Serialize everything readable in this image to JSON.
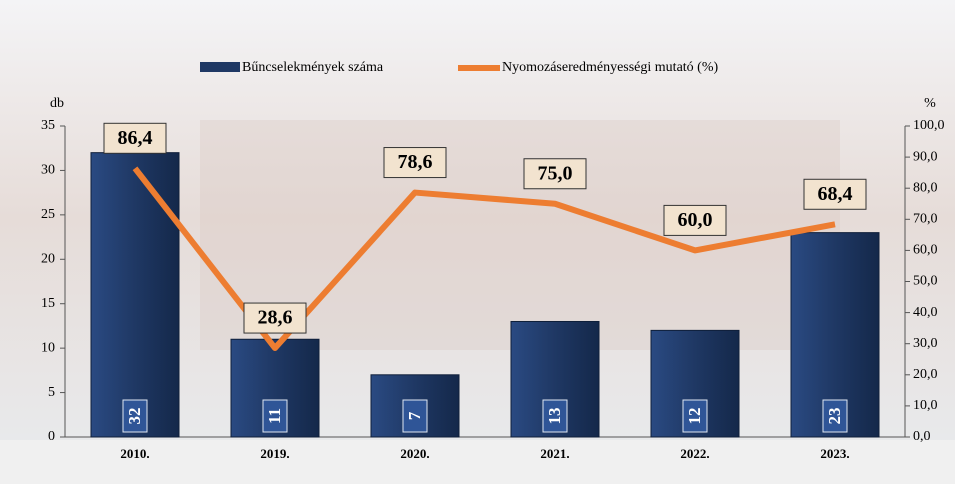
{
  "chart_data": {
    "type": "combo",
    "y_label": "db",
    "y2_label": "%",
    "categories": [
      "2010.",
      "2019.",
      "2020.",
      "2021.",
      "2022.",
      "2023."
    ],
    "series": [
      {
        "name": "Bűncselekmények száma",
        "type": "bar",
        "color": "#1f3864",
        "values": [
          32,
          11,
          7,
          13,
          12,
          23
        ]
      },
      {
        "name": "Nyomozáseredményességi mutató (%)",
        "type": "line",
        "axis": "y2",
        "color": "#ed7d31",
        "values": [
          86.4,
          28.6,
          78.6,
          75.0,
          60.0,
          68.4
        ],
        "value_labels": [
          "86,4",
          "28,6",
          "78,6",
          "75,0",
          "60,0",
          "68,4"
        ]
      }
    ],
    "ylim": [
      0,
      35
    ],
    "yticks": [
      0,
      5,
      10,
      15,
      20,
      25,
      30,
      35
    ],
    "y2lim": [
      0,
      100
    ],
    "y2ticks": [
      {
        "value": 0,
        "label": "0,0"
      },
      {
        "value": 10,
        "label": "10,0"
      },
      {
        "value": 20,
        "label": "20,0"
      },
      {
        "value": 30,
        "label": "30,0"
      },
      {
        "value": 40,
        "label": "40,0"
      },
      {
        "value": 50,
        "label": "50,0"
      },
      {
        "value": 60,
        "label": "60,0"
      },
      {
        "value": 70,
        "label": "70,0"
      },
      {
        "value": 80,
        "label": "80,0"
      },
      {
        "value": 90,
        "label": "90,0"
      },
      {
        "value": 100,
        "label": "100,0"
      }
    ]
  }
}
